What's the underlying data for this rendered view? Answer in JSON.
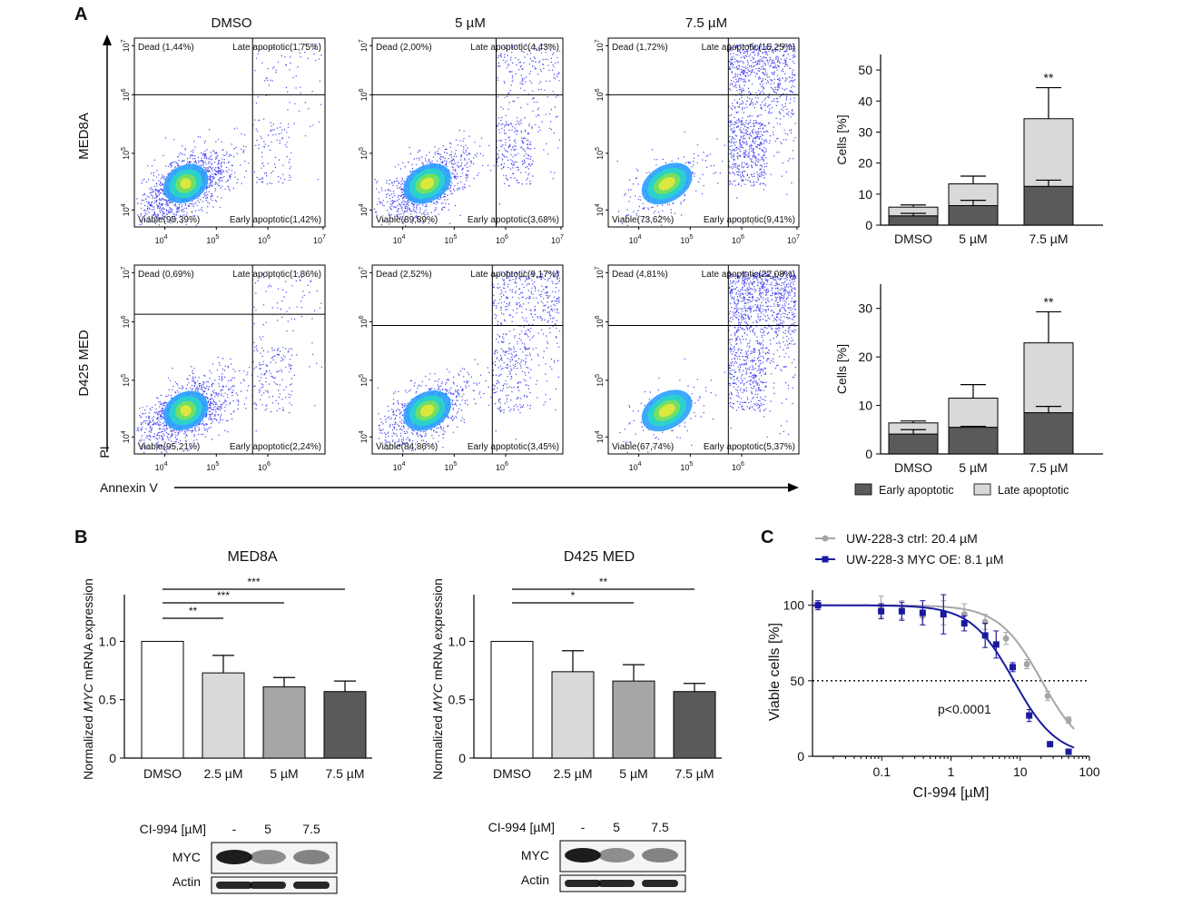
{
  "panel_labels": {
    "a": "A",
    "b": "B",
    "c": "C"
  },
  "panel_a": {
    "columns": [
      "DMSO",
      "5 µM",
      "7.5 µM"
    ],
    "rows": [
      "MED8A",
      "D425 MED"
    ],
    "axis_y": "PI",
    "axis_x": "Annexin V",
    "y_ticks": [
      "10",
      "10",
      "10",
      "10"
    ],
    "y_exps": [
      "4",
      "5",
      "6",
      "7"
    ],
    "x_ticks": [
      "10",
      "10",
      "10",
      "10"
    ],
    "x_exps": [
      "4",
      "5",
      "6",
      "7"
    ],
    "quad_prefixes": {
      "dead": "Dead ",
      "late": "Late apoptotic",
      "viable": "Viable",
      "early": "Early apoptotic"
    },
    "flow_plots": [
      {
        "row": "MED8A",
        "column": "DMSO",
        "dead": "(1,44%)",
        "late": "(1,75%)",
        "viable": "(95,39%)",
        "early": "(1,42%)"
      },
      {
        "row": "MED8A",
        "column": "5 µM",
        "dead": "(2,00%)",
        "late": "(4,43%)",
        "viable": "(89,89%)",
        "early": "(3,68%)"
      },
      {
        "row": "MED8A",
        "column": "7.5 µM",
        "dead": "(1,72%)",
        "late": "(15,25%)",
        "viable": "(73,62%)",
        "early": "(9,41%)"
      },
      {
        "row": "D425 MED",
        "column": "DMSO",
        "dead": "(0,69%)",
        "late": "(1,86%)",
        "viable": "(95,21%)",
        "early": "(2,24%)"
      },
      {
        "row": "D425 MED",
        "column": "5 µM",
        "dead": "(2,52%)",
        "late": "(9,17%)",
        "viable": "(84,86%)",
        "early": "(3,45%)"
      },
      {
        "row": "D425 MED",
        "column": "7.5 µM",
        "dead": "(4,81%)",
        "late": "(22,08%)",
        "viable": "(67,74%)",
        "early": "(5,37%)"
      }
    ],
    "legend": {
      "early": "Early apoptotic",
      "late": "Late apoptotic"
    },
    "colors": {
      "early": "#5a5a5a",
      "late": "#d9d9d9"
    }
  },
  "chart_data": [
    {
      "type": "bar",
      "stacked": true,
      "panel": "A-top",
      "categories": [
        "DMSO",
        "5 µM",
        "7.5 µM"
      ],
      "ylabel": "Cells [%]",
      "ylim": [
        0,
        55
      ],
      "yticks": [
        0,
        10,
        20,
        30,
        40,
        50
      ],
      "series": [
        {
          "name": "Early apoptotic",
          "values": [
            3,
            6.3,
            12.5
          ],
          "errors": [
            0.8,
            1.7,
            2.0
          ]
        },
        {
          "name": "Late apoptotic",
          "values": [
            2.8,
            7.0,
            21.8
          ],
          "errors": [
            0.7,
            2.5,
            10.0
          ]
        }
      ],
      "significance": [
        "",
        "",
        "**"
      ]
    },
    {
      "type": "bar",
      "stacked": true,
      "panel": "A-bottom",
      "categories": [
        "DMSO",
        "5 µM",
        "7.5 µM"
      ],
      "ylabel": "Cells [%]",
      "ylim": [
        0,
        35
      ],
      "yticks": [
        0,
        10,
        20,
        30
      ],
      "series": [
        {
          "name": "Early apoptotic",
          "values": [
            4.1,
            5.5,
            8.5
          ],
          "errors": [
            0.9,
            0.2,
            1.3
          ]
        },
        {
          "name": "Late apoptotic",
          "values": [
            2.3,
            6.0,
            14.4
          ],
          "errors": [
            0.4,
            2.8,
            6.4
          ]
        }
      ],
      "significance": [
        "",
        "",
        "**"
      ]
    },
    {
      "type": "bar",
      "panel": "B-left",
      "title": "MED8A",
      "categories": [
        "DMSO",
        "2.5 µM",
        "5 µM",
        "7.5 µM"
      ],
      "values": [
        1.0,
        0.73,
        0.61,
        0.57
      ],
      "errors": [
        0,
        0.15,
        0.08,
        0.09
      ],
      "ylabel_parts": [
        "Normalized ",
        "MYC",
        " mRNA expression"
      ],
      "ylim": [
        0,
        1.4
      ],
      "yticks": [
        "0",
        "0.5",
        "1.0"
      ],
      "ytick_vals": [
        0,
        0.5,
        1.0
      ],
      "colors": [
        "#ffffff",
        "#d9d9d9",
        "#a6a6a6",
        "#5a5a5a"
      ],
      "brackets": [
        {
          "to": 1,
          "label": "**"
        },
        {
          "to": 2,
          "label": "***"
        },
        {
          "to": 3,
          "label": "***"
        }
      ]
    },
    {
      "type": "bar",
      "panel": "B-right",
      "title": "D425 MED",
      "categories": [
        "DMSO",
        "2.5 µM",
        "5 µM",
        "7.5 µM"
      ],
      "values": [
        1.0,
        0.74,
        0.66,
        0.57
      ],
      "errors": [
        0,
        0.18,
        0.14,
        0.07
      ],
      "ylabel_parts": [
        "Normalized ",
        "MYC",
        " mRNA expression"
      ],
      "ylim": [
        0,
        1.4
      ],
      "yticks": [
        "0",
        "0.5",
        "1.0"
      ],
      "ytick_vals": [
        0,
        0.5,
        1.0
      ],
      "colors": [
        "#ffffff",
        "#d9d9d9",
        "#a6a6a6",
        "#5a5a5a"
      ],
      "brackets": [
        {
          "to": 2,
          "label": "*"
        },
        {
          "to": 3,
          "label": "**"
        }
      ]
    },
    {
      "type": "line",
      "panel": "C",
      "xscale": "log",
      "xlabel": "CI-994 [µM]",
      "ylabel": "Viable cells [%]",
      "xlim": [
        0.01,
        100
      ],
      "ylim": [
        0,
        110
      ],
      "xticks": [
        "0.1",
        "1",
        "10",
        "100"
      ],
      "xtick_vals": [
        0.1,
        1,
        10,
        100
      ],
      "yticks": [
        0,
        50,
        100
      ],
      "reference_y": 50,
      "annotation": "p<0.0001",
      "series": [
        {
          "name": "UW-228-3 ctrl: 20.4 µM",
          "color": "#a6a6a6",
          "marker": "circle",
          "ic50": 20.4,
          "x": [
            0.012,
            0.098,
            0.195,
            0.39,
            0.78,
            1.56,
            3.12,
            6.25,
            12.5,
            25,
            50
          ],
          "y": [
            100,
            99,
            97,
            93,
            95,
            94,
            89,
            78,
            61,
            40,
            24
          ],
          "err": [
            2,
            7,
            6,
            6,
            8,
            7,
            5,
            4,
            3,
            3,
            2
          ]
        },
        {
          "name": "UW-228-3 MYC OE: 8.1 µM",
          "color": "#1a1aa0",
          "marker": "square",
          "ic50": 8.1,
          "x": [
            0.012,
            0.098,
            0.195,
            0.39,
            0.78,
            1.56,
            3.12,
            4.5,
            7.8,
            13.5,
            27,
            50
          ],
          "y": [
            100,
            96,
            96,
            95,
            94,
            88,
            80,
            74,
            59,
            27,
            8,
            3
          ],
          "err": [
            3,
            5,
            6,
            8,
            13,
            5,
            8,
            9,
            3,
            4,
            1,
            1
          ]
        }
      ]
    }
  ],
  "panel_b": {
    "blot_label": "CI-994 [µM]",
    "blot_lanes": [
      "-",
      "5",
      "7.5"
    ],
    "blot_rows": [
      "MYC",
      "Actin"
    ]
  }
}
